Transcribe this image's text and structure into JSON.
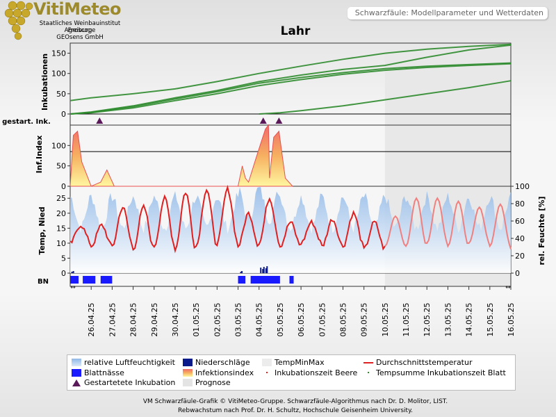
{
  "header": {
    "brand": "VitiMeteo",
    "institutes": [
      "Staatliches Weinbauinstitut Freiburg",
      "Agroscope",
      "GEOsens GmbH"
    ],
    "model_box": "Schwarzfäule: Modellparameter und Wetterdaten",
    "title": "Lahr"
  },
  "panels": {
    "inkubationen": "Inkubationen",
    "gestartet": "gestart. Ink.",
    "infindex": "Inf.Index",
    "temp": "Temp, Nied",
    "feuchte": "rel. Feuchte [%]",
    "bn": "BN"
  },
  "legend": {
    "rlf": "relative Luftfeuchtigkeit",
    "nied": "Niederschläge",
    "tmm": "TempMinMax",
    "dt": "Durchschnittstemperatur",
    "blattnaesse": "Blattnässe",
    "infidx": "Infektionsindex",
    "ibeere": "Inkubationszeit Beere",
    "tsumme": "Tempsumme Inkubationszeit Blatt",
    "gstart": "Gestartetete Inkubation",
    "prognose": "Prognose"
  },
  "footer": {
    "line1": "VM Schwarzfäule-Grafik © VitiMeteo-Gruppe. Schwarzfäule-Algorithmus nach Dr. D. Molitor, LIST.",
    "line2": "Rebwachstum nach Prof. Dr. H. Schultz, Hochschule Geisenheim University."
  },
  "colors": {
    "inkubation": "#2e8b2e",
    "temperature": "#e02020",
    "forecast_temperature": "#f08080",
    "humidity": "#8fb8e8",
    "precipitation": "#0a1a8a",
    "leaf_wetness": "#1a1aff",
    "started_marker": "#5a1a5a",
    "forecast_bg": "#e8e8e8"
  },
  "chart_data": {
    "type": "line",
    "x_dates": [
      "25.04.25",
      "26.04.25",
      "27.04.25",
      "28.04.25",
      "29.04.25",
      "30.04.25",
      "01.05.25",
      "02.05.25",
      "03.05.25",
      "04.05.25",
      "05.05.25",
      "06.05.25",
      "07.05.25",
      "08.05.25",
      "09.05.25",
      "10.05.25",
      "11.05.25",
      "12.05.25",
      "13.05.25",
      "14.05.25",
      "15.05.25",
      "16.05.25"
    ],
    "x_ticks": [
      "26.04.25",
      "27.04.25",
      "28.04.25",
      "29.04.25",
      "30.04.25",
      "01.05.25",
      "02.05.25",
      "03.05.25",
      "04.05.25",
      "05.05.25",
      "06.05.25",
      "07.05.25",
      "08.05.25",
      "09.05.25",
      "10.05.25",
      "11.05.25",
      "12.05.25",
      "13.05.25",
      "14.05.25",
      "15.05.25",
      "16.05.25"
    ],
    "forecast_start": "10.05.25",
    "inkubationen": {
      "ylim": [
        0,
        175
      ],
      "yticks": [
        0,
        50,
        100,
        150
      ],
      "series": [
        {
          "x": [
            "25.04.25",
            "26.04.25",
            "28.04.25",
            "30.04.25",
            "02.05.25",
            "04.05.25",
            "06.05.25",
            "08.05.25",
            "10.05.25",
            "12.05.25",
            "14.05.25",
            "16.05.25"
          ],
          "y": [
            33,
            40,
            50,
            62,
            80,
            100,
            118,
            135,
            150,
            160,
            167,
            172
          ]
        },
        {
          "x": [
            "25.04.25",
            "26.04.25",
            "28.04.25",
            "30.04.25",
            "02.05.25",
            "04.05.25",
            "06.05.25",
            "08.05.25",
            "10.05.25",
            "12.05.25",
            "14.05.25",
            "16.05.25"
          ],
          "y": [
            0,
            5,
            20,
            40,
            58,
            80,
            96,
            110,
            120,
            140,
            158,
            170
          ]
        },
        {
          "x": [
            "25.04.25",
            "26.04.25",
            "28.04.25",
            "30.04.25",
            "02.05.25",
            "04.05.25",
            "06.05.25",
            "08.05.25",
            "10.05.25",
            "12.05.25",
            "14.05.25",
            "16.05.25"
          ],
          "y": [
            0,
            4,
            18,
            37,
            55,
            76,
            90,
            102,
            112,
            118,
            122,
            126
          ]
        },
        {
          "x": [
            "25.04.25",
            "26.04.25",
            "28.04.25",
            "30.04.25",
            "02.05.25",
            "04.05.25",
            "06.05.25",
            "08.05.25",
            "10.05.25",
            "12.05.25",
            "14.05.25",
            "16.05.25"
          ],
          "y": [
            0,
            3,
            15,
            33,
            50,
            70,
            85,
            98,
            108,
            115,
            120,
            124
          ]
        },
        {
          "x": [
            "04.05.25",
            "05.05.25",
            "06.05.25",
            "08.05.25",
            "10.05.25",
            "12.05.25",
            "14.05.25",
            "16.05.25"
          ],
          "y": [
            0,
            3,
            8,
            20,
            35,
            50,
            65,
            82
          ]
        }
      ]
    },
    "gestartete_inkubation": [
      "26.04.25",
      "04.05.25",
      "05.05.25"
    ],
    "infektionsindex": {
      "ylim": [
        0,
        150
      ],
      "yticks": [
        0,
        50,
        100
      ],
      "threshold": 85,
      "x": [
        "25.04.25",
        "25.04.25",
        "25.04.25",
        "25.04.25",
        "26.04.25",
        "26.04.25",
        "26.04.25",
        "27.04.25",
        "03.05.25",
        "03.05.25",
        "03.05.25",
        "03.05.25",
        "04.05.25",
        "04.05.25",
        "04.05.25",
        "04.05.25",
        "05.05.25",
        "05.05.25",
        "05.05.25",
        "05.05.25",
        "06.05.25"
      ],
      "y": [
        0,
        125,
        135,
        60,
        0,
        10,
        40,
        0,
        0,
        50,
        20,
        10,
        60,
        100,
        140,
        150,
        20,
        120,
        135,
        20,
        0
      ]
    },
    "temperature": {
      "ylim": [
        0,
        29
      ],
      "yticks": [
        0,
        5,
        10,
        15,
        20,
        25
      ],
      "observed_daily_min": [
        10,
        9,
        9,
        8,
        9,
        8,
        9,
        10,
        9,
        10,
        9,
        10,
        9,
        9,
        8
      ],
      "observed_daily_max": [
        16,
        16,
        22,
        22,
        25,
        27,
        28,
        28,
        20,
        25,
        17,
        17,
        18,
        20,
        17
      ],
      "forecast_daily_min": [
        9,
        9,
        10,
        9,
        10,
        9,
        8
      ],
      "forecast_daily_max": [
        19,
        25,
        25,
        24,
        22,
        23,
        22
      ]
    },
    "humidity": {
      "ylim": [
        0,
        100
      ],
      "yticks": [
        0,
        20,
        40,
        60,
        80,
        100
      ]
    },
    "precipitation_days": [
      "25.04.25",
      "03.05.25",
      "04.05.25"
    ],
    "blattnaesse": [
      {
        "from": "25.04.25",
        "to": "25.04.25"
      },
      {
        "from": "25.04.25",
        "to": "26.04.25"
      },
      {
        "from": "26.04.25",
        "to": "27.04.25"
      },
      {
        "from": "03.05.25",
        "to": "04.05.25"
      },
      {
        "from": "04.05.25",
        "to": "05.05.25"
      },
      {
        "from": "06.05.25",
        "to": "06.05.25"
      }
    ]
  }
}
